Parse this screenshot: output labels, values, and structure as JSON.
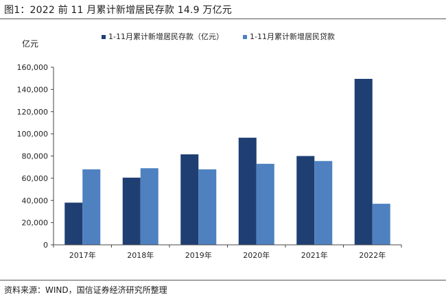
{
  "figure": {
    "title": "图1：2022 前 11 月累计新增居民存款 14.9 万亿元",
    "source": "资料来源：WIND，国信证券经济研究所整理"
  },
  "chart_data": {
    "type": "bar",
    "unit_label": "亿元",
    "categories": [
      "2017年",
      "2018年",
      "2019年",
      "2020年",
      "2021年",
      "2022年"
    ],
    "series": [
      {
        "name": "1-11月累计新增居民存款（亿元）",
        "color": "#1f3f73",
        "values": [
          38000,
          60500,
          81500,
          96500,
          80000,
          149500
        ]
      },
      {
        "name": "1-11月累计新增居民贷款",
        "color": "#4f81c0",
        "values": [
          68000,
          69000,
          68000,
          73000,
          75500,
          37000
        ]
      }
    ],
    "ylim": [
      0,
      160000
    ],
    "yticks": [
      "0",
      "20,000",
      "40,000",
      "60,000",
      "80,000",
      "100,000",
      "120,000",
      "140,000",
      "160,000"
    ],
    "legend_position": "top",
    "grid": false
  }
}
